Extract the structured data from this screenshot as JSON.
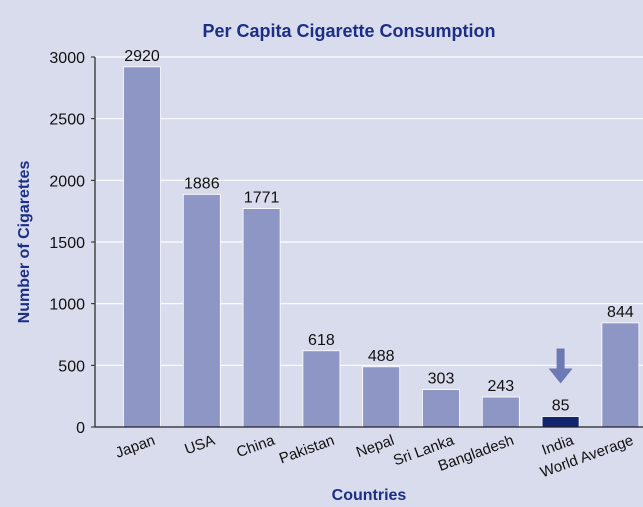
{
  "chart_data": {
    "type": "bar",
    "title": "Per Capita Cigarette Consumption",
    "xlabel": "Countries",
    "ylabel": "Number of Cigarettes",
    "categories": [
      "Japan",
      "USA",
      "China",
      "Pakistan",
      "Nepal",
      "Sri Lanka",
      "Bangladesh",
      "India",
      "World Average"
    ],
    "values": [
      2920,
      1886,
      1771,
      618,
      488,
      303,
      243,
      85,
      844
    ],
    "ylim": [
      0,
      3000
    ],
    "yticks": [
      "0",
      "500",
      "1000",
      "1500",
      "2000",
      "2500",
      "3000"
    ],
    "grid": true,
    "highlight_category": "India",
    "colors": {
      "background": "#d9dcec",
      "bar": "#8d96c4",
      "bar_highlight": "#12256f",
      "arrow": "#6d79b4",
      "title": "#1b2f86",
      "grid": "#ffffff"
    }
  }
}
